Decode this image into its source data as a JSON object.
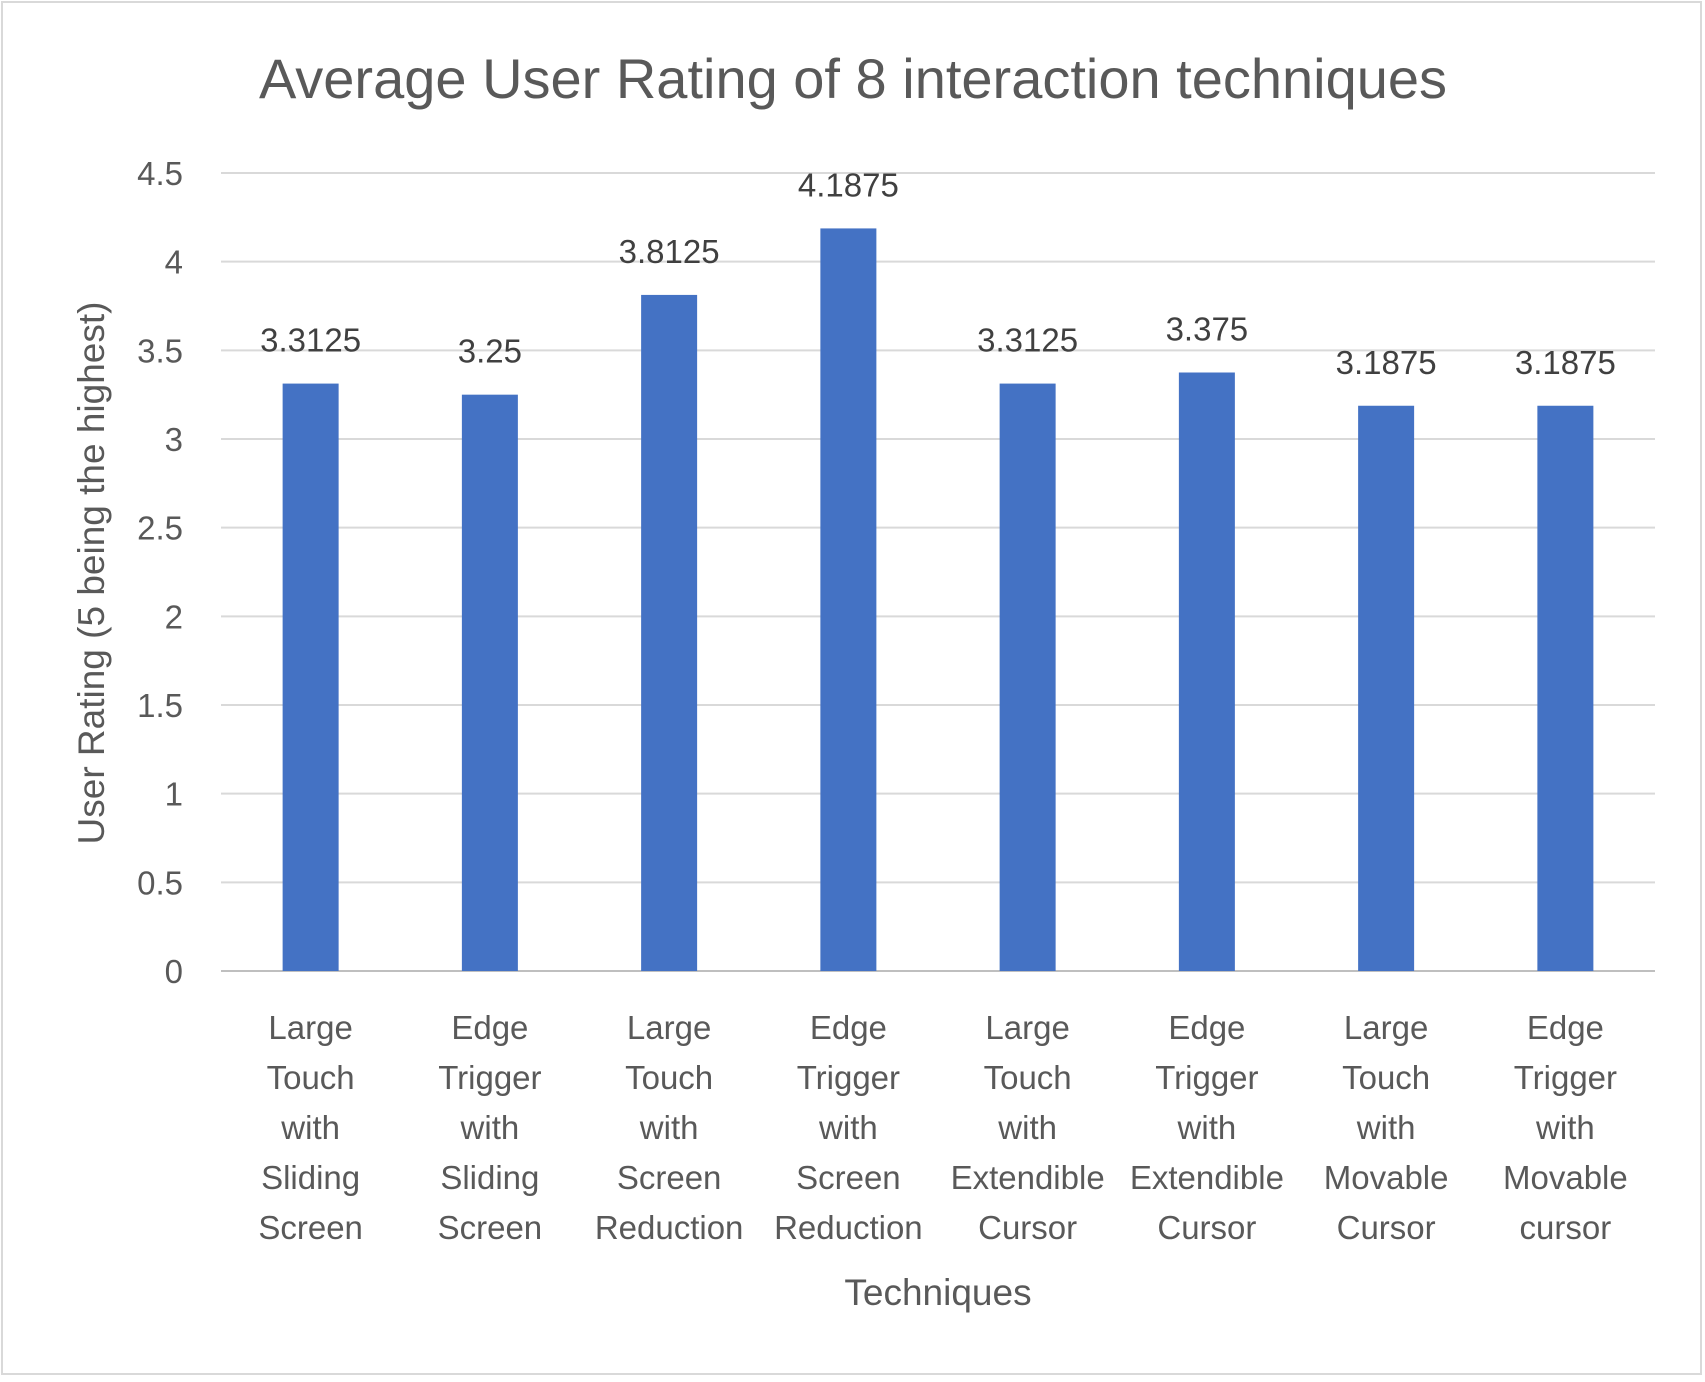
{
  "chart_data": {
    "type": "bar",
    "title": "Average User Rating of 8 interaction techniques",
    "xlabel": "Techniques",
    "ylabel": "User Rating (5 being the highest)",
    "ylim": [
      0,
      4.5
    ],
    "ytick_step": 0.5,
    "yticks": [
      "0",
      "0.5",
      "1",
      "1.5",
      "2",
      "2.5",
      "3",
      "3.5",
      "4",
      "4.5"
    ],
    "grid": true,
    "legend": "none",
    "bar_color": "#4472c4",
    "categories": [
      [
        "Large",
        "Touch",
        "with",
        "Sliding",
        "Screen"
      ],
      [
        "Edge",
        "Trigger",
        "with",
        "Sliding",
        "Screen"
      ],
      [
        "Large",
        "Touch",
        "with",
        "Screen",
        "Reduction"
      ],
      [
        "Edge",
        "Trigger",
        "with",
        "Screen",
        "Reduction"
      ],
      [
        "Large",
        "Touch",
        "with",
        "Extendible",
        "Cursor"
      ],
      [
        "Edge",
        "Trigger",
        "with",
        "Extendible",
        "Cursor"
      ],
      [
        "Large",
        "Touch",
        "with",
        "Movable",
        "Cursor"
      ],
      [
        "Edge",
        "Trigger",
        "with",
        "Movable",
        "cursor"
      ]
    ],
    "values": [
      3.3125,
      3.25,
      3.8125,
      4.1875,
      3.3125,
      3.375,
      3.1875,
      3.1875
    ],
    "data_labels": [
      "3.3125",
      "3.25",
      "3.8125",
      "4.1875",
      "3.3125",
      "3.375",
      "3.1875",
      "3.1875"
    ]
  }
}
